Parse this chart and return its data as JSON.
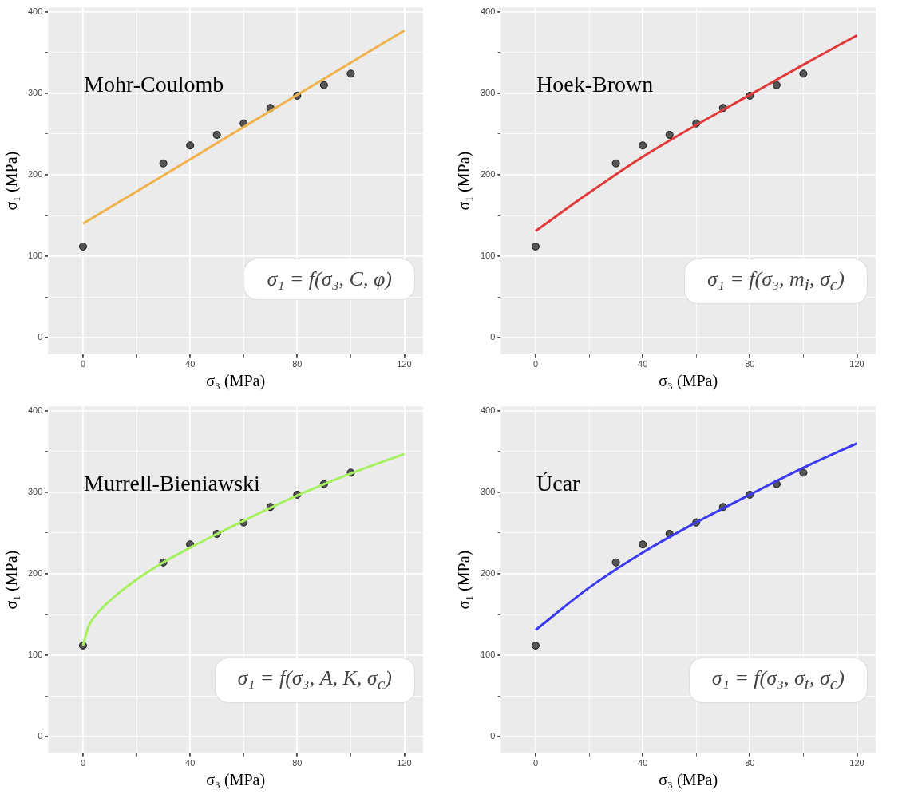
{
  "chart_data": [
    {
      "type": "scatter",
      "xlabel": "σ₃ (MPa)",
      "ylabel": "σ₁ (MPa)",
      "annotations": [
        "Mohr-Coulomb",
        "σ₁ = f(σ₃, C, φ)"
      ],
      "xlim": [
        -13,
        127
      ],
      "ylim": [
        -20,
        405
      ],
      "xticks": [
        0,
        {
          "value": 20,
          "label": null
        },
        40,
        {
          "value": 60,
          "label": null
        },
        80,
        {
          "value": 100,
          "label": null
        },
        120
      ],
      "yticks": [
        0,
        {
          "value": 50,
          "label": null
        },
        100,
        {
          "value": 150,
          "label": null
        },
        200,
        {
          "value": 250,
          "label": null
        },
        300,
        {
          "value": 350,
          "label": null
        },
        400
      ],
      "grid": true,
      "series": [
        {
          "type": "scatter",
          "marker": "circle",
          "color": "#555555",
          "x": [
            0,
            30,
            40,
            50,
            60,
            70,
            80,
            90,
            100
          ],
          "values": [
            112,
            214,
            236,
            249,
            263,
            282,
            297,
            310,
            324
          ]
        },
        {
          "type": "line",
          "marker": "none",
          "color": "#f0b24a",
          "x": [
            0,
            120
          ],
          "values": [
            140,
            377
          ]
        }
      ]
    },
    {
      "type": "scatter",
      "xlabel": "σ₃ (MPa)",
      "ylabel": "σ₁ (MPa)",
      "annotations": [
        "Hoek-Brown",
        "σ₁ = f(σ₃, m$_{i}$, σ$_{c}$)"
      ],
      "xlim": [
        -13,
        127
      ],
      "ylim": [
        -20,
        405
      ],
      "xticks": [
        0,
        {
          "value": 20,
          "label": null
        },
        40,
        {
          "value": 60,
          "label": null
        },
        80,
        {
          "value": 100,
          "label": null
        },
        120
      ],
      "yticks": [
        0,
        {
          "value": 50,
          "label": null
        },
        100,
        {
          "value": 150,
          "label": null
        },
        200,
        {
          "value": 250,
          "label": null
        },
        300,
        {
          "value": 350,
          "label": null
        },
        400
      ],
      "grid": true,
      "series": [
        {
          "type": "scatter",
          "marker": "circle",
          "color": "#555555",
          "x": [
            0,
            30,
            40,
            50,
            60,
            70,
            80,
            90,
            100
          ],
          "values": [
            112,
            214,
            236,
            249,
            263,
            282,
            297,
            310,
            324
          ]
        },
        {
          "type": "line",
          "marker": "none",
          "color": "#e03a3a",
          "x": [
            0,
            20,
            40,
            60,
            80,
            100,
            120
          ],
          "values": [
            131,
            178,
            222,
            261,
            298,
            335,
            371
          ]
        }
      ]
    },
    {
      "type": "scatter",
      "xlabel": "σ₃ (MPa)",
      "ylabel": "σ₁ (MPa)",
      "annotations": [
        "Murrell-Bieniawski",
        "σ₁ = f(σ₃, A, K, σ$_{c}$)"
      ],
      "xlim": [
        -13,
        127
      ],
      "ylim": [
        -20,
        405
      ],
      "xticks": [
        0,
        {
          "value": 20,
          "label": null
        },
        40,
        {
          "value": 60,
          "label": null
        },
        80,
        {
          "value": 100,
          "label": null
        },
        120
      ],
      "yticks": [
        0,
        {
          "value": 50,
          "label": null
        },
        100,
        {
          "value": 150,
          "label": null
        },
        200,
        {
          "value": 250,
          "label": null
        },
        300,
        {
          "value": 350,
          "label": null
        },
        400
      ],
      "grid": true,
      "series": [
        {
          "type": "scatter",
          "marker": "circle",
          "color": "#555555",
          "x": [
            0,
            30,
            40,
            50,
            60,
            70,
            80,
            90,
            100
          ],
          "values": [
            112,
            214,
            236,
            249,
            263,
            282,
            297,
            310,
            324
          ]
        },
        {
          "type": "line",
          "marker": "none",
          "color": "#a6f060",
          "x": [
            0,
            2,
            5,
            10,
            20,
            30,
            40,
            60,
            80,
            100,
            120
          ],
          "values": [
            112,
            135,
            150,
            167,
            193,
            214,
            232,
            265,
            296,
            323,
            347
          ]
        }
      ]
    },
    {
      "type": "scatter",
      "xlabel": "σ₃ (MPa)",
      "ylabel": "σ₁ (MPa)",
      "annotations": [
        "Úcar",
        "σ₁ = f(σ₃, σ$_{t}$, σ$_{c}$)"
      ],
      "xlim": [
        -13,
        127
      ],
      "ylim": [
        -20,
        405
      ],
      "xticks": [
        0,
        {
          "value": 20,
          "label": null
        },
        40,
        {
          "value": 60,
          "label": null
        },
        80,
        {
          "value": 100,
          "label": null
        },
        120
      ],
      "yticks": [
        0,
        {
          "value": 50,
          "label": null
        },
        100,
        {
          "value": 150,
          "label": null
        },
        200,
        {
          "value": 250,
          "label": null
        },
        300,
        {
          "value": 350,
          "label": null
        },
        400
      ],
      "grid": true,
      "series": [
        {
          "type": "scatter",
          "marker": "circle",
          "color": "#555555",
          "x": [
            0,
            30,
            40,
            50,
            60,
            70,
            80,
            90,
            100
          ],
          "values": [
            112,
            214,
            236,
            249,
            263,
            282,
            297,
            310,
            324
          ]
        },
        {
          "type": "line",
          "marker": "none",
          "color": "#3a3af0",
          "x": [
            0,
            20,
            40,
            60,
            80,
            100,
            120
          ],
          "values": [
            131,
            183,
            226,
            263,
            297,
            330,
            360
          ]
        }
      ]
    }
  ]
}
